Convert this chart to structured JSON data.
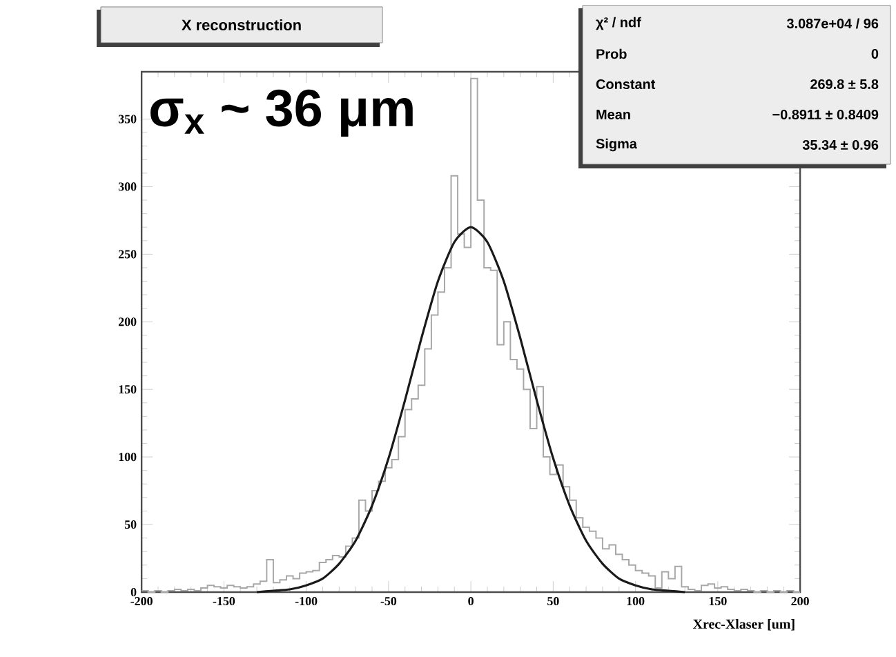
{
  "chart_data": {
    "type": "histogram",
    "title": "X reconstruction",
    "xlabel": "Xrec-Xlaser [um]",
    "annotations": [
      "σ$_{x}$ ~ 36 μm",
      "χ² / ndf",
      "3.087e+04 / 96",
      "Prob",
      "0",
      "Constant",
      "269.8 ± 5.8",
      "Mean",
      "−0.8911 ± 0.8409",
      "Sigma",
      "35.34 ± 0.96"
    ],
    "bins": [
      -200,
      -196,
      -192,
      -188,
      -184,
      -180,
      -176,
      -172,
      -168,
      -164,
      -160,
      -156,
      -152,
      -148,
      -144,
      -140,
      -136,
      -132,
      -128,
      -124,
      -120,
      -116,
      -112,
      -108,
      -104,
      -100,
      -96,
      -92,
      -88,
      -84,
      -80,
      -76,
      -72,
      -68,
      -64,
      -60,
      -56,
      -52,
      -48,
      -44,
      -40,
      -36,
      -32,
      -28,
      -24,
      -20,
      -16,
      -12,
      -8,
      -4,
      0,
      4,
      8,
      12,
      16,
      20,
      24,
      28,
      32,
      36,
      40,
      44,
      48,
      52,
      56,
      60,
      64,
      68,
      72,
      76,
      80,
      84,
      88,
      92,
      96,
      100,
      104,
      108,
      112,
      116,
      120,
      124,
      128,
      132,
      136,
      140,
      144,
      148,
      152,
      156,
      160,
      164,
      168,
      172,
      176,
      180,
      184,
      188,
      192,
      196,
      200
    ],
    "series": [
      {
        "color": "#a8a8a8",
        "values": [
          1,
          0,
          1,
          0,
          1,
          2,
          1,
          2,
          1,
          3,
          5,
          4,
          3,
          5,
          4,
          3,
          4,
          6,
          8,
          24,
          7,
          9,
          12,
          10,
          14,
          15,
          16,
          22,
          24,
          27,
          26,
          34,
          40,
          68,
          60,
          75,
          82,
          92,
          98,
          115,
          135,
          143,
          153,
          180,
          205,
          222,
          240,
          308,
          265,
          255,
          380,
          290,
          240,
          238,
          183,
          200,
          172,
          165,
          150,
          121,
          152,
          100,
          87,
          94,
          78,
          68,
          55,
          48,
          45,
          40,
          32,
          35,
          28,
          24,
          20,
          16,
          14,
          12,
          3,
          15,
          10,
          19,
          4,
          2,
          1,
          5,
          6,
          3,
          4,
          2,
          1,
          2,
          1,
          0,
          1,
          0,
          1,
          0,
          1,
          0
        ]
      },
      {
        "type": "line",
        "color": "#1a1a1a",
        "x": [
          -130,
          -120,
          -110,
          -100,
          -90,
          -80,
          -70,
          -60,
          -50,
          -40,
          -30,
          -20,
          -10,
          0,
          10,
          20,
          30,
          40,
          50,
          60,
          70,
          80,
          90,
          100,
          110,
          120,
          130
        ],
        "values": [
          0,
          1,
          2,
          5,
          10,
          21,
          38,
          64,
          99,
          142,
          188,
          230,
          259,
          270,
          259,
          230,
          188,
          142,
          99,
          64,
          38,
          21,
          10,
          5,
          2,
          1,
          0
        ]
      }
    ],
    "xlim": [
      -200,
      200
    ],
    "ylim": [
      0,
      385
    ],
    "xticks": [
      -200,
      -150,
      -100,
      -50,
      0,
      50,
      100,
      150,
      200
    ],
    "yticks": [
      0,
      50,
      100,
      150,
      200,
      250,
      300,
      350
    ]
  }
}
